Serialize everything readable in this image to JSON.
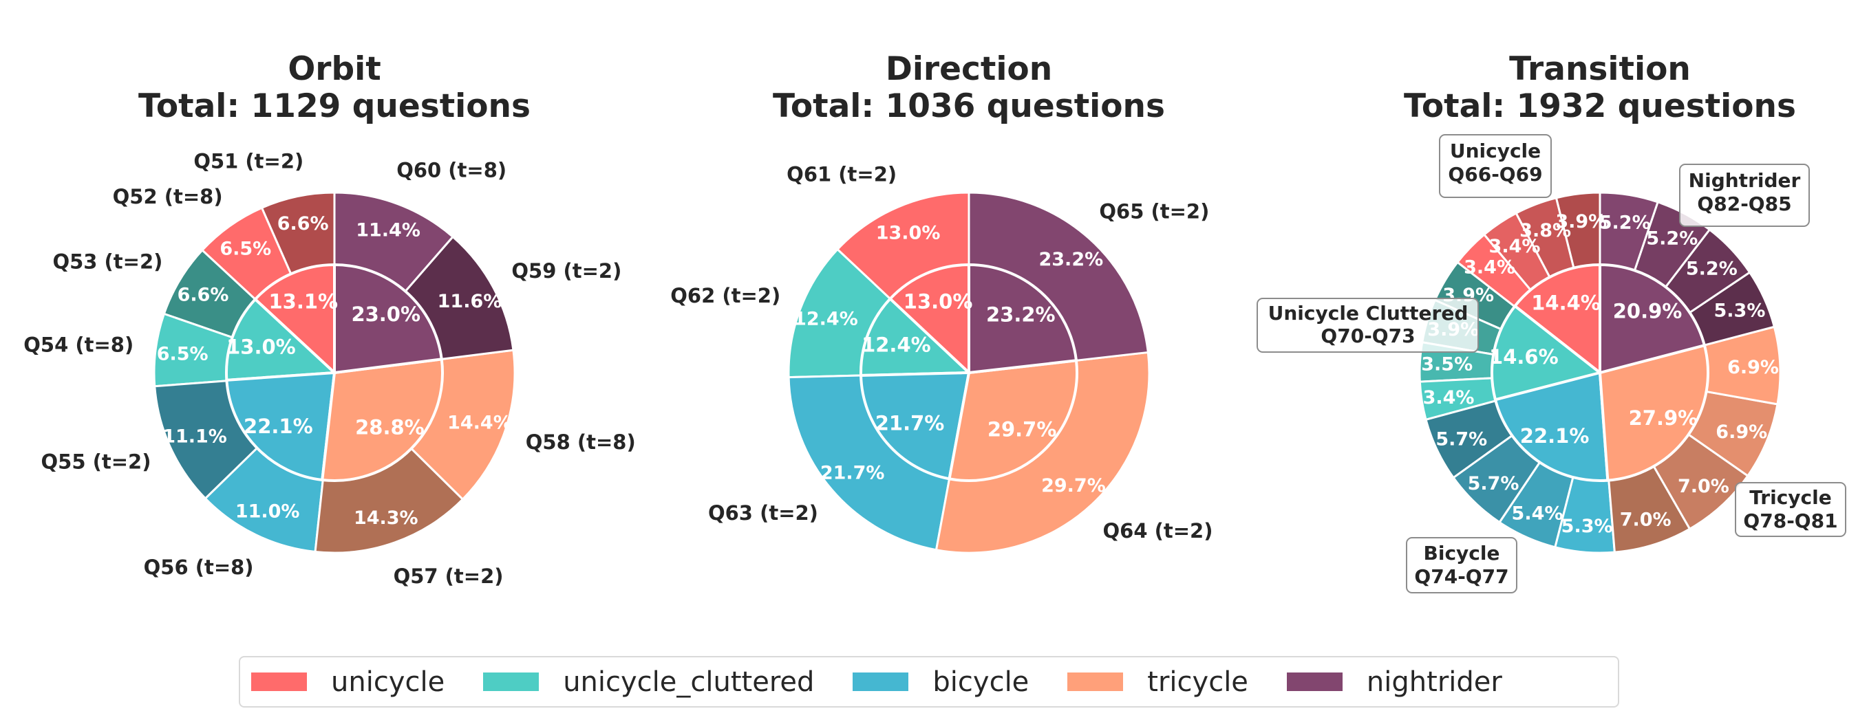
{
  "colors": {
    "unicycle": [
      "#B04C4C",
      "#C85656",
      "#E46262",
      "#FF6B6B"
    ],
    "unicycle_cluttered": [
      "#3A8F87",
      "#42A39A",
      "#48B8AF",
      "#4ECDC4"
    ],
    "bicycle": [
      "#347F92",
      "#3B91A7",
      "#40A4BC",
      "#45B7D1"
    ],
    "tricycle": [
      "#B07055",
      "#C87E62",
      "#E48F6E",
      "#FFA07A"
    ],
    "nightrider": [
      "#5C2F4C",
      "#693657",
      "#763E63",
      "#82466F"
    ]
  },
  "legend": {
    "items": [
      {
        "label": "unicycle",
        "color": "#FF6B6B"
      },
      {
        "label": "unicycle_cluttered",
        "color": "#4ECDC4"
      },
      {
        "label": "bicycle",
        "color": "#45B7D1"
      },
      {
        "label": "tricycle",
        "color": "#FFA07A"
      },
      {
        "label": "nightrider",
        "color": "#82466F"
      }
    ]
  },
  "chart_data": [
    {
      "type": "pie",
      "subtype": "nested-donut",
      "title": "Orbit",
      "subtitle": "Total: 1129 questions",
      "inner": {
        "categories": [
          "unicycle",
          "unicycle_cluttered",
          "bicycle",
          "tricycle",
          "nightrider"
        ],
        "values": [
          13.1,
          13.0,
          22.1,
          28.8,
          23.0
        ]
      },
      "outer": [
        {
          "group": "unicycle",
          "label": "Q51 (t=2)",
          "value": 6.6
        },
        {
          "group": "unicycle",
          "label": "Q52 (t=8)",
          "value": 6.5
        },
        {
          "group": "unicycle_cluttered",
          "label": "Q53 (t=2)",
          "value": 6.6
        },
        {
          "group": "unicycle_cluttered",
          "label": "Q54 (t=8)",
          "value": 6.5
        },
        {
          "group": "bicycle",
          "label": "Q55 (t=2)",
          "value": 11.1
        },
        {
          "group": "bicycle",
          "label": "Q56 (t=8)",
          "value": 11.0
        },
        {
          "group": "tricycle",
          "label": "Q57 (t=2)",
          "value": 14.3
        },
        {
          "group": "tricycle",
          "label": "Q58 (t=8)",
          "value": 14.4
        },
        {
          "group": "nightrider",
          "label": "Q59 (t=2)",
          "value": 11.6
        },
        {
          "group": "nightrider",
          "label": "Q60 (t=8)",
          "value": 11.4
        }
      ]
    },
    {
      "type": "pie",
      "subtype": "nested-donut",
      "title": "Direction",
      "subtitle": "Total: 1036 questions",
      "inner": {
        "categories": [
          "unicycle",
          "unicycle_cluttered",
          "bicycle",
          "tricycle",
          "nightrider"
        ],
        "values": [
          13.0,
          12.4,
          21.7,
          29.7,
          23.2
        ]
      },
      "outer": [
        {
          "group": "unicycle",
          "label": "Q61 (t=2)",
          "value": 13.0
        },
        {
          "group": "unicycle_cluttered",
          "label": "Q62 (t=2)",
          "value": 12.4
        },
        {
          "group": "bicycle",
          "label": "Q63 (t=2)",
          "value": 21.7
        },
        {
          "group": "tricycle",
          "label": "Q64 (t=2)",
          "value": 29.7
        },
        {
          "group": "nightrider",
          "label": "Q65 (t=2)",
          "value": 23.2
        }
      ]
    },
    {
      "type": "pie",
      "subtype": "nested-donut",
      "title": "Transition",
      "subtitle": "Total: 1932 questions",
      "inner": {
        "categories": [
          "unicycle",
          "unicycle_cluttered",
          "bicycle",
          "tricycle",
          "nightrider"
        ],
        "values": [
          14.4,
          14.6,
          22.1,
          27.9,
          20.9
        ]
      },
      "outer": [
        {
          "group": "unicycle",
          "value": 3.9
        },
        {
          "group": "unicycle",
          "value": 3.8
        },
        {
          "group": "unicycle",
          "value": 3.4
        },
        {
          "group": "unicycle",
          "value": 3.4
        },
        {
          "group": "unicycle_cluttered",
          "value": 3.9
        },
        {
          "group": "unicycle_cluttered",
          "value": 3.9
        },
        {
          "group": "unicycle_cluttered",
          "value": 3.5
        },
        {
          "group": "unicycle_cluttered",
          "value": 3.4
        },
        {
          "group": "bicycle",
          "value": 5.7
        },
        {
          "group": "bicycle",
          "value": 5.7
        },
        {
          "group": "bicycle",
          "value": 5.4
        },
        {
          "group": "bicycle",
          "value": 5.3
        },
        {
          "group": "tricycle",
          "value": 7.0
        },
        {
          "group": "tricycle",
          "value": 7.0
        },
        {
          "group": "tricycle",
          "value": 6.9
        },
        {
          "group": "tricycle",
          "value": 6.9
        },
        {
          "group": "nightrider",
          "value": 5.3
        },
        {
          "group": "nightrider",
          "value": 5.2
        },
        {
          "group": "nightrider",
          "value": 5.2
        },
        {
          "group": "nightrider",
          "value": 5.2
        }
      ],
      "annotations": [
        {
          "line1": "Unicycle",
          "line2": "Q66-Q69"
        },
        {
          "line1": "Unicycle Cluttered",
          "line2": "Q70-Q73"
        },
        {
          "line1": "Bicycle",
          "line2": "Q74-Q77"
        },
        {
          "line1": "Tricycle",
          "line2": "Q78-Q81"
        },
        {
          "line1": "Nightrider",
          "line2": "Q82-Q85"
        }
      ]
    }
  ]
}
